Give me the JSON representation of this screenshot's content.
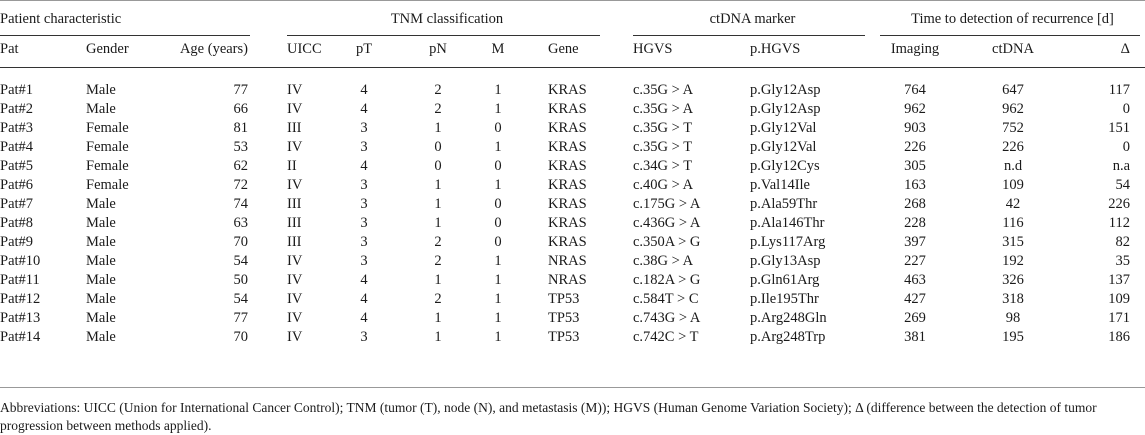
{
  "groups": {
    "patient": "Patient characteristic",
    "tnm": "TNM classification",
    "ctdna": "ctDNA marker",
    "time": "Time to detection of recurrence [d]"
  },
  "columns": [
    "Pat",
    "Gender",
    "Age (years)",
    "UICC",
    "pT",
    "pN",
    "M",
    "Gene",
    "HGVS",
    "p.HGVS",
    "Imaging",
    "ctDNA",
    "Δ"
  ],
  "rows": [
    [
      "Pat#1",
      "Male",
      "77",
      "IV",
      "4",
      "2",
      "1",
      "KRAS",
      "c.35G > A",
      "p.Gly12Asp",
      "764",
      "647",
      "117"
    ],
    [
      "Pat#2",
      "Male",
      "66",
      "IV",
      "4",
      "2",
      "1",
      "KRAS",
      "c.35G > A",
      "p.Gly12Asp",
      "962",
      "962",
      "0"
    ],
    [
      "Pat#3",
      "Female",
      "81",
      "III",
      "3",
      "1",
      "0",
      "KRAS",
      "c.35G > T",
      "p.Gly12Val",
      "903",
      "752",
      "151"
    ],
    [
      "Pat#4",
      "Female",
      "53",
      "IV",
      "3",
      "0",
      "1",
      "KRAS",
      "c.35G > T",
      "p.Gly12Val",
      "226",
      "226",
      "0"
    ],
    [
      "Pat#5",
      "Female",
      "62",
      "II",
      "4",
      "0",
      "0",
      "KRAS",
      "c.34G > T",
      "p.Gly12Cys",
      "305",
      "n.d",
      "n.a"
    ],
    [
      "Pat#6",
      "Female",
      "72",
      "IV",
      "3",
      "1",
      "1",
      "KRAS",
      "c.40G > A",
      "p.Val14Ile",
      "163",
      "109",
      "54"
    ],
    [
      "Pat#7",
      "Male",
      "74",
      "III",
      "3",
      "1",
      "0",
      "KRAS",
      "c.175G > A",
      "p.Ala59Thr",
      "268",
      "42",
      "226"
    ],
    [
      "Pat#8",
      "Male",
      "63",
      "III",
      "3",
      "1",
      "0",
      "KRAS",
      "c.436G > A",
      "p.Ala146Thr",
      "228",
      "116",
      "112"
    ],
    [
      "Pat#9",
      "Male",
      "70",
      "III",
      "3",
      "2",
      "0",
      "KRAS",
      "c.350A > G",
      "p.Lys117Arg",
      "397",
      "315",
      "82"
    ],
    [
      "Pat#10",
      "Male",
      "54",
      "IV",
      "3",
      "2",
      "1",
      "NRAS",
      "c.38G > A",
      "p.Gly13Asp",
      "227",
      "192",
      "35"
    ],
    [
      "Pat#11",
      "Male",
      "50",
      "IV",
      "4",
      "1",
      "1",
      "NRAS",
      "c.182A > G",
      "p.Gln61Arg",
      "463",
      "326",
      "137"
    ],
    [
      "Pat#12",
      "Male",
      "54",
      "IV",
      "4",
      "2",
      "1",
      "TP53",
      "c.584T > C",
      "p.Ile195Thr",
      "427",
      "318",
      "109"
    ],
    [
      "Pat#13",
      "Male",
      "77",
      "IV",
      "4",
      "1",
      "1",
      "TP53",
      "c.743G > A",
      "p.Arg248Gln",
      "269",
      "98",
      "171"
    ],
    [
      "Pat#14",
      "Male",
      "70",
      "IV",
      "3",
      "1",
      "1",
      "TP53",
      "c.742C > T",
      "p.Arg248Trp",
      "381",
      "195",
      "186"
    ]
  ],
  "footnote": "Abbreviations: UICC (Union for International Cancer Control); TNM (tumor (T), node (N), and metastasis (M)); HGVS (Human Genome Variation Society); Δ (difference between the detection of tumor progression between methods applied)."
}
